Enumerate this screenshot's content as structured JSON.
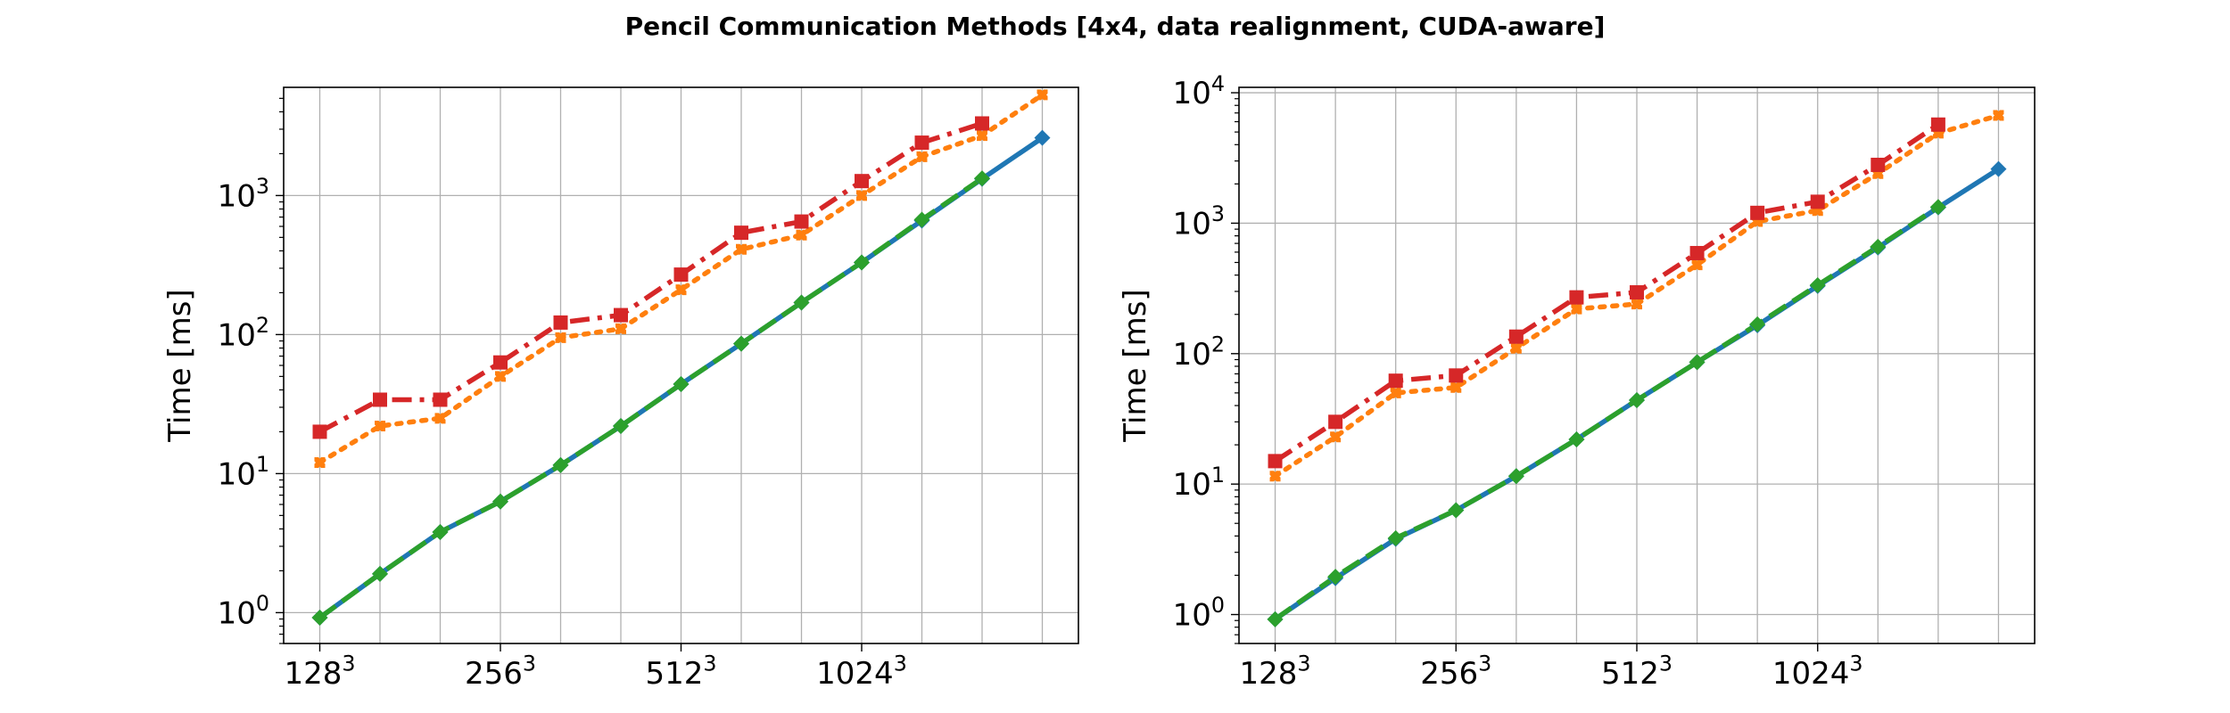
{
  "figure": {
    "title": "Pencil Communication Methods [4x4, data realignment, CUDA-aware]"
  },
  "chart_data": [
    {
      "type": "line",
      "title": "",
      "xlabel": "",
      "ylabel": "Time [ms]",
      "yscale": "log",
      "ylim": [
        0.6,
        6000
      ],
      "grid": true,
      "legend": "none",
      "x": [
        0,
        1,
        2,
        3,
        4,
        5,
        6,
        7,
        8,
        9,
        10,
        11,
        12
      ],
      "xlim": [
        -0.6,
        12.6
      ],
      "x_ticks": [
        {
          "x": 0,
          "base": "128",
          "exp": "3"
        },
        {
          "x": 3,
          "base": "256",
          "exp": "3"
        },
        {
          "x": 6,
          "base": "512",
          "exp": "3"
        },
        {
          "x": 9,
          "base": "1024",
          "exp": "3"
        }
      ],
      "y_ticks": [
        {
          "value": 1,
          "base": "10",
          "exp": "0"
        },
        {
          "value": 10,
          "base": "10",
          "exp": "1"
        },
        {
          "value": 100,
          "base": "10",
          "exp": "2"
        },
        {
          "value": 1000,
          "base": "10",
          "exp": "3"
        }
      ],
      "series": [
        {
          "color": "#1f77b4",
          "dash": "solid",
          "marker": "diamond",
          "values": [
            0.92,
            1.9,
            3.8,
            6.3,
            11.5,
            22,
            44,
            86,
            170,
            330,
            660,
            1320,
            2600
          ]
        },
        {
          "color": "#2ca02c",
          "dash": "dashed",
          "marker": "diamond",
          "values": [
            0.92,
            1.9,
            3.8,
            6.3,
            11.5,
            22,
            44,
            86,
            170,
            330,
            670,
            1330,
            null
          ]
        },
        {
          "color": "#ff7f0e",
          "dash": "dotted",
          "marker": "x",
          "values": [
            12,
            22,
            25,
            50,
            95,
            110,
            210,
            410,
            520,
            1000,
            1900,
            2700,
            5300
          ]
        },
        {
          "color": "#d62728",
          "dash": "dashdot",
          "marker": "square",
          "values": [
            20,
            34,
            34,
            63,
            122,
            138,
            270,
            540,
            650,
            1270,
            2400,
            3300,
            null
          ]
        }
      ]
    },
    {
      "type": "line",
      "title": "",
      "xlabel": "",
      "ylabel": "Time [ms]",
      "yscale": "log",
      "ylim": [
        0.6,
        11000
      ],
      "grid": true,
      "legend": "none",
      "x": [
        0,
        1,
        2,
        3,
        4,
        5,
        6,
        7,
        8,
        9,
        10,
        11,
        12
      ],
      "xlim": [
        -0.6,
        12.6
      ],
      "x_ticks": [
        {
          "x": 0,
          "base": "128",
          "exp": "3"
        },
        {
          "x": 3,
          "base": "256",
          "exp": "3"
        },
        {
          "x": 6,
          "base": "512",
          "exp": "3"
        },
        {
          "x": 9,
          "base": "1024",
          "exp": "3"
        }
      ],
      "y_ticks": [
        {
          "value": 1,
          "base": "10",
          "exp": "0"
        },
        {
          "value": 10,
          "base": "10",
          "exp": "1"
        },
        {
          "value": 100,
          "base": "10",
          "exp": "2"
        },
        {
          "value": 1000,
          "base": "10",
          "exp": "3"
        },
        {
          "value": 10000,
          "base": "10",
          "exp": "4"
        }
      ],
      "series": [
        {
          "color": "#1f77b4",
          "dash": "solid",
          "marker": "diamond",
          "values": [
            0.92,
            1.9,
            3.8,
            6.3,
            11.5,
            22,
            44,
            86,
            165,
            330,
            650,
            1320,
            2600
          ]
        },
        {
          "color": "#2ca02c",
          "dash": "dashed",
          "marker": "diamond",
          "values": [
            0.92,
            1.95,
            3.85,
            6.3,
            11.5,
            22,
            44,
            86,
            168,
            335,
            660,
            1330,
            null
          ]
        },
        {
          "color": "#ff7f0e",
          "dash": "dotted",
          "marker": "x",
          "values": [
            11.5,
            23,
            50,
            55,
            110,
            220,
            240,
            480,
            1030,
            1250,
            2400,
            4900,
            6700
          ]
        },
        {
          "color": "#d62728",
          "dash": "dashdot",
          "marker": "square",
          "values": [
            15,
            30,
            62,
            68,
            135,
            270,
            295,
            590,
            1200,
            1460,
            2800,
            5700,
            null
          ]
        }
      ]
    }
  ]
}
